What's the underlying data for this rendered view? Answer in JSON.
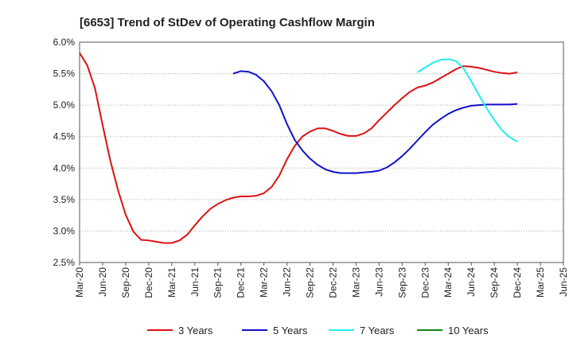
{
  "chart_data": {
    "type": "line",
    "title": "[6653]  Trend of StDev of Operating Cashflow Margin",
    "xlabel": "",
    "ylabel": "",
    "ylim": [
      2.5,
      6.0
    ],
    "y_ticks": [
      2.5,
      3.0,
      3.5,
      4.0,
      4.5,
      5.0,
      5.5,
      6.0
    ],
    "y_tick_labels": [
      "2.5%",
      "3.0%",
      "3.5%",
      "4.0%",
      "4.5%",
      "5.0%",
      "5.5%",
      "6.0%"
    ],
    "x_tick_labels": [
      "Mar-20",
      "Jun-20",
      "Sep-20",
      "Dec-20",
      "Mar-21",
      "Jun-21",
      "Sep-21",
      "Dec-21",
      "Mar-22",
      "Jun-22",
      "Sep-22",
      "Dec-22",
      "Mar-23",
      "Jun-23",
      "Sep-23",
      "Dec-23",
      "Mar-24",
      "Jun-24",
      "Sep-24",
      "Dec-24",
      "Mar-25",
      "Jun-25"
    ],
    "x_range_months": [
      "Mar-20",
      "Jun-25"
    ],
    "grid": "horizontal dotted",
    "legend_position": "bottom",
    "series": [
      {
        "name": "3 Years",
        "color": "#dd1111",
        "x": [
          "Mar-20",
          "Apr-20",
          "May-20",
          "Jun-20",
          "Jul-20",
          "Aug-20",
          "Sep-20",
          "Oct-20",
          "Nov-20",
          "Dec-20",
          "Jan-21",
          "Feb-21",
          "Mar-21",
          "Apr-21",
          "May-21",
          "Jun-21",
          "Jul-21",
          "Aug-21",
          "Sep-21",
          "Oct-21",
          "Nov-21",
          "Dec-21",
          "Jan-22",
          "Feb-22",
          "Mar-22",
          "Apr-22",
          "May-22",
          "Jun-22",
          "Jul-22",
          "Aug-22",
          "Sep-22",
          "Oct-22",
          "Nov-22",
          "Dec-22",
          "Jan-23",
          "Feb-23",
          "Mar-23",
          "Apr-23",
          "May-23",
          "Jun-23",
          "Jul-23",
          "Aug-23",
          "Sep-23",
          "Oct-23",
          "Nov-23",
          "Dec-23",
          "Jan-24",
          "Feb-24",
          "Mar-24",
          "Apr-24",
          "May-24",
          "Jun-24",
          "Jul-24",
          "Aug-24",
          "Sep-24",
          "Oct-24",
          "Nov-24",
          "Dec-24"
        ],
        "values": [
          5.83,
          5.63,
          5.27,
          4.68,
          4.12,
          3.65,
          3.26,
          2.99,
          2.86,
          2.85,
          2.83,
          2.81,
          2.81,
          2.85,
          2.94,
          3.09,
          3.23,
          3.35,
          3.43,
          3.49,
          3.53,
          3.55,
          3.55,
          3.56,
          3.6,
          3.7,
          3.88,
          4.14,
          4.35,
          4.5,
          4.58,
          4.63,
          4.63,
          4.59,
          4.54,
          4.51,
          4.51,
          4.55,
          4.63,
          4.76,
          4.88,
          5.0,
          5.11,
          5.21,
          5.28,
          5.31,
          5.36,
          5.43,
          5.5,
          5.57,
          5.62,
          5.61,
          5.59,
          5.56,
          5.53,
          5.51,
          5.5,
          5.52
        ]
      },
      {
        "name": "5 Years",
        "color": "#1111cc",
        "x": [
          "Mar-22",
          "Apr-22",
          "May-22",
          "Jun-22",
          "Jul-22",
          "Aug-22",
          "Sep-22",
          "Oct-22",
          "Nov-22",
          "Dec-22",
          "Jan-23",
          "Feb-23",
          "Mar-23",
          "Apr-23",
          "May-23",
          "Jun-23",
          "Jul-23",
          "Aug-23",
          "Sep-23",
          "Oct-23",
          "Nov-23",
          "Dec-23",
          "Jan-24",
          "Feb-24",
          "Mar-24",
          "Apr-24",
          "May-24",
          "Jun-24",
          "Jul-24",
          "Aug-24",
          "Sep-24",
          "Oct-24",
          "Nov-24",
          "Dec-24"
        ],
        "x_start": "Nov-21",
        "values_full": {
          "Nov-21": 5.5,
          "Dec-21": 5.54,
          "Jan-22": 5.53,
          "Feb-22": 5.48,
          "Mar-22": 5.38,
          "Apr-22": 5.22,
          "May-22": 5.0,
          "Jun-22": 4.7,
          "Jul-22": 4.45,
          "Aug-22": 4.28,
          "Sep-22": 4.15,
          "Oct-22": 4.05,
          "Nov-22": 3.98,
          "Dec-22": 3.94,
          "Jan-23": 3.92,
          "Feb-23": 3.92,
          "Mar-23": 3.92,
          "Apr-23": 3.93,
          "May-23": 3.94,
          "Jun-23": 3.96,
          "Jul-23": 4.01,
          "Aug-23": 4.09,
          "Sep-23": 4.19,
          "Oct-23": 4.31,
          "Nov-23": 4.44,
          "Dec-23": 4.57,
          "Jan-24": 4.69,
          "Feb-24": 4.78,
          "Mar-24": 4.86,
          "Apr-24": 4.92,
          "May-24": 4.96,
          "Jun-24": 4.99,
          "Jul-24": 5.0,
          "Aug-24": 5.01,
          "Sep-24": 5.01,
          "Oct-24": 5.01,
          "Nov-24": 5.01,
          "Dec-24": 5.02
        }
      },
      {
        "name": "7 Years",
        "color": "#22eeee",
        "values_full": {
          "Nov-23": 5.52,
          "Dec-23": 5.6,
          "Jan-24": 5.67,
          "Feb-24": 5.72,
          "Mar-24": 5.73,
          "Apr-24": 5.7,
          "May-24": 5.58,
          "Jun-24": 5.38,
          "Jul-24": 5.16,
          "Aug-24": 4.95,
          "Sep-24": 4.76,
          "Oct-24": 4.6,
          "Nov-24": 4.49,
          "Dec-24": 4.42
        }
      },
      {
        "name": "10 Years",
        "color": "#118811",
        "values_full": {}
      }
    ]
  }
}
